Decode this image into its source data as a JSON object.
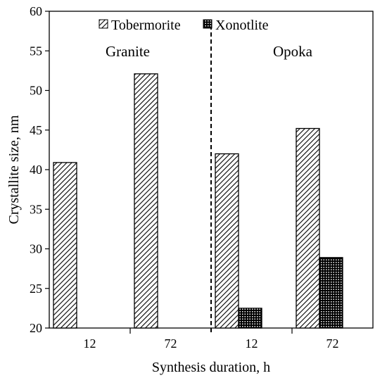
{
  "chart_data": {
    "type": "bar",
    "title": "",
    "xlabel": "Synthesis duration, h",
    "ylabel": "Crystallite size, nm",
    "ylim": [
      20,
      60
    ],
    "yticks": [
      20,
      25,
      30,
      35,
      40,
      45,
      50,
      55,
      60
    ],
    "grid": false,
    "legend_placement": "top-center",
    "groups": [
      {
        "label": "Granite",
        "categories": [
          "12",
          "72"
        ]
      },
      {
        "label": "Opoka",
        "categories": [
          "12",
          "72"
        ]
      }
    ],
    "categories": [
      "12",
      "72",
      "12",
      "72"
    ],
    "series": [
      {
        "name": "Tobermorite",
        "pattern": "diagonal-hatch",
        "values": [
          40.9,
          52.1,
          42.0,
          45.2
        ]
      },
      {
        "name": "Xonotlite",
        "pattern": "dense-dots",
        "values": [
          null,
          null,
          22.5,
          28.9
        ]
      }
    ],
    "colors": {
      "bar_fill": "#ffffff",
      "pattern_ink": "#000000",
      "axis": "#000000"
    }
  }
}
